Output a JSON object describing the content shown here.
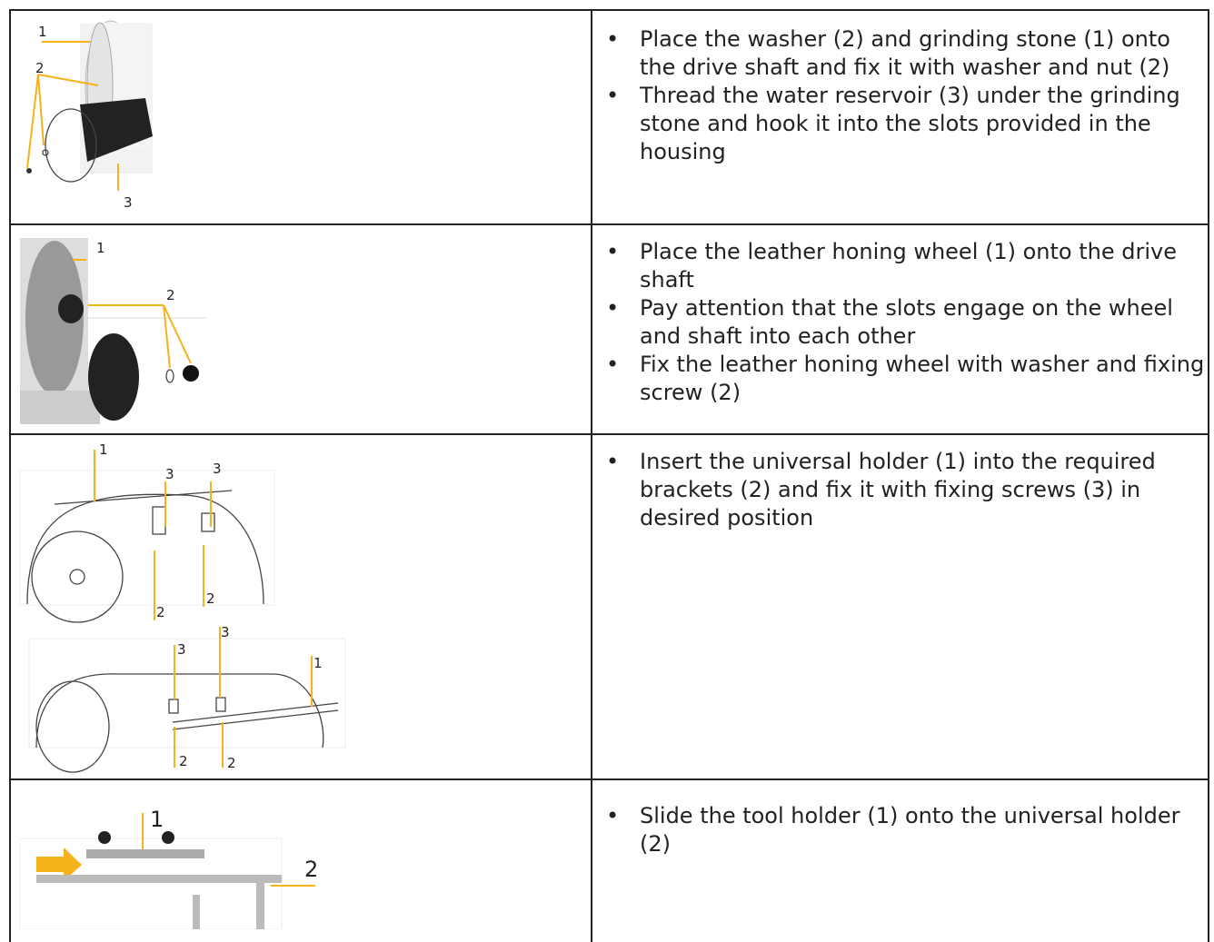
{
  "rows": [
    {
      "callouts": [
        "1",
        "2",
        "3"
      ],
      "bullets": [
        "Place the washer (2) and grinding stone (1) onto the drive shaft and fix it with washer and nut (2)",
        "Thread the water reservoir (3) under the grinding stone and hook it into the slots provided in the housing"
      ]
    },
    {
      "callouts": [
        "1",
        "2"
      ],
      "bullets": [
        "Place the leather honing wheel (1) onto the drive shaft",
        "Pay attention that the slots engage on the wheel and shaft into each other",
        "Fix the leather honing wheel with washer and fixing screw (2)"
      ]
    },
    {
      "callouts": [
        "1",
        "3",
        "3",
        "2",
        "2",
        "3",
        "3",
        "1",
        "2",
        "2"
      ],
      "bullets": [
        "Insert the universal holder (1) into the required brackets (2) and fix it with fixing screws (3) in desired position"
      ]
    },
    {
      "callouts": [
        "1",
        "2"
      ],
      "bullets": [
        "Slide the tool holder (1) onto the universal holder (2)"
      ]
    }
  ]
}
